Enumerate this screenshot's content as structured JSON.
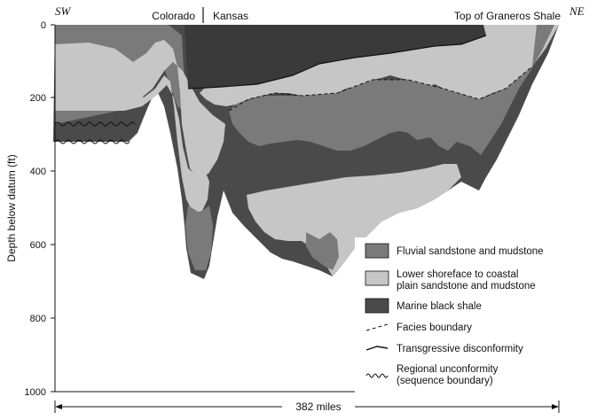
{
  "header": {
    "left_direction": "SW",
    "right_direction": "NE",
    "state_left": "Colorado",
    "state_right": "Kansas",
    "datum_label": "Top of Graneros Shale"
  },
  "y_axis": {
    "label": "Depth below datum (ft)",
    "ticks": [
      "0",
      "200",
      "400",
      "600",
      "800",
      "1000"
    ]
  },
  "x_axis": {
    "distance_label": "382 miles"
  },
  "legend": {
    "items": [
      {
        "label_lines": [
          "Fluvial sandstone and mudstone"
        ],
        "symbol": "swatch",
        "color": "#7a7a7a"
      },
      {
        "label_lines": [
          "Lower shoreface to coastal",
          "plain sandstone and mudstone"
        ],
        "symbol": "swatch",
        "color": "#c6c6c6"
      },
      {
        "label_lines": [
          "Marine black shale"
        ],
        "symbol": "swatch",
        "color": "#4a4a4a"
      },
      {
        "label_lines": [
          "Facies boundary"
        ],
        "symbol": "dashed-line"
      },
      {
        "label_lines": [
          "Transgressive disconformity"
        ],
        "symbol": "solid-line"
      },
      {
        "label_lines": [
          "Regional unconformity",
          "(sequence boundary)"
        ],
        "symbol": "wavy-line"
      }
    ]
  },
  "colors": {
    "marine_black_shale": "#4a4a4a",
    "fluvial": "#7a7a7a",
    "shoreface": "#c6c6c6",
    "background": "#ffffff"
  }
}
